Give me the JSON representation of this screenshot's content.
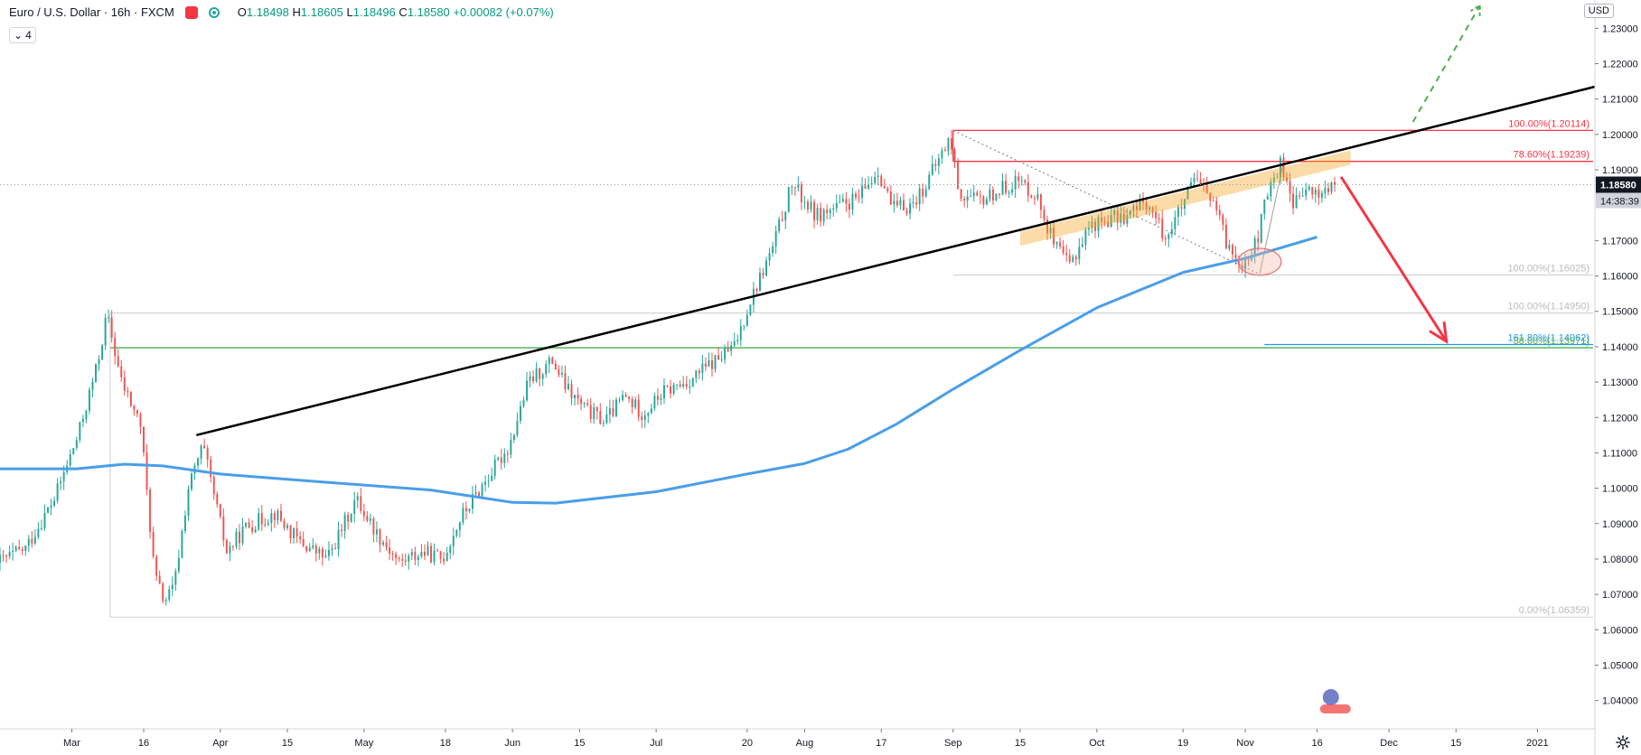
{
  "header": {
    "symbol_title": "Euro / U.S. Dollar · 16h · FXCM",
    "ohlc": {
      "o_label": "O",
      "o": "1.18498",
      "h_label": "H",
      "h": "1.18605",
      "l_label": "L",
      "l": "1.18496",
      "c_label": "C",
      "c": "1.18580",
      "change": "+0.00082 (+0.07%)"
    },
    "collapse_count": "4",
    "currency": "USD"
  },
  "colors": {
    "up": "#26a69a",
    "down": "#ef5350",
    "ma": "#4a9ee8",
    "trendline": "#000000",
    "fib_red": "#f23645",
    "fib_green": "#4caf50",
    "fib_blue": "#2196f3",
    "fib_gray": "#9e9e9e",
    "projection_green": "#4caf50"
  },
  "chart_data": {
    "type": "candlestick",
    "title": "Euro / U.S. Dollar · 16h · FXCM",
    "ylim": [
      1.032,
      1.238
    ],
    "y_ticks": [
      "1.23000",
      "1.22000",
      "1.21000",
      "1.20000",
      "1.19000",
      "1.17000",
      "1.16000",
      "1.15000",
      "1.14000",
      "1.13000",
      "1.12000",
      "1.11000",
      "1.10000",
      "1.09000",
      "1.08000",
      "1.07000",
      "1.06000",
      "1.05000",
      "1.04000"
    ],
    "y_tick_values": [
      1.23,
      1.22,
      1.21,
      1.2,
      1.19,
      1.17,
      1.16,
      1.15,
      1.14,
      1.13,
      1.12,
      1.11,
      1.1,
      1.09,
      1.08,
      1.07,
      1.06,
      1.05,
      1.04
    ],
    "x_ticks": [
      "Mar",
      "16",
      "Apr",
      "15",
      "May",
      "18",
      "Jun",
      "15",
      "Jul",
      "20",
      "Aug",
      "17",
      "Sep",
      "15",
      "Oct",
      "19",
      "Nov",
      "16",
      "Dec",
      "15",
      "2021"
    ],
    "x_tick_dates": [
      "2020-03-01",
      "2020-03-16",
      "2020-04-01",
      "2020-04-15",
      "2020-05-01",
      "2020-05-18",
      "2020-06-01",
      "2020-06-15",
      "2020-07-01",
      "2020-07-20",
      "2020-08-01",
      "2020-08-17",
      "2020-09-01",
      "2020-09-15",
      "2020-10-01",
      "2020-10-19",
      "2020-11-01",
      "2020-11-16",
      "2020-12-01",
      "2020-12-15",
      "2021-01-01"
    ],
    "x_range": [
      "2020-02-15",
      "2021-01-13"
    ],
    "price_path": [
      [
        "2020-02-15",
        1.079
      ],
      [
        "2020-02-21",
        1.083
      ],
      [
        "2020-02-27",
        1.097
      ],
      [
        "2020-03-03",
        1.115
      ],
      [
        "2020-03-07",
        1.135
      ],
      [
        "2020-03-09",
        1.149
      ],
      [
        "2020-03-12",
        1.13
      ],
      [
        "2020-03-16",
        1.118
      ],
      [
        "2020-03-19",
        1.075
      ],
      [
        "2020-03-21",
        1.068
      ],
      [
        "2020-03-23",
        1.072
      ],
      [
        "2020-03-26",
        1.1
      ],
      [
        "2020-03-29",
        1.112
      ],
      [
        "2020-04-03",
        1.082
      ],
      [
        "2020-04-07",
        1.089
      ],
      [
        "2020-04-13",
        1.093
      ],
      [
        "2020-04-18",
        1.085
      ],
      [
        "2020-04-24",
        1.08
      ],
      [
        "2020-04-30",
        1.097
      ],
      [
        "2020-05-04",
        1.088
      ],
      [
        "2020-05-09",
        1.079
      ],
      [
        "2020-05-14",
        1.082
      ],
      [
        "2020-05-18",
        1.08
      ],
      [
        "2020-05-22",
        1.092
      ],
      [
        "2020-05-28",
        1.104
      ],
      [
        "2020-06-01",
        1.112
      ],
      [
        "2020-06-05",
        1.13
      ],
      [
        "2020-06-10",
        1.136
      ],
      [
        "2020-06-13",
        1.128
      ],
      [
        "2020-06-17",
        1.122
      ],
      [
        "2020-06-21",
        1.119
      ],
      [
        "2020-06-25",
        1.126
      ],
      [
        "2020-06-29",
        1.121
      ],
      [
        "2020-07-03",
        1.127
      ],
      [
        "2020-07-08",
        1.13
      ],
      [
        "2020-07-13",
        1.135
      ],
      [
        "2020-07-18",
        1.14
      ],
      [
        "2020-07-21",
        1.152
      ],
      [
        "2020-07-26",
        1.168
      ],
      [
        "2020-07-30",
        1.186
      ],
      [
        "2020-08-04",
        1.177
      ],
      [
        "2020-08-08",
        1.179
      ],
      [
        "2020-08-13",
        1.182
      ],
      [
        "2020-08-17",
        1.19
      ],
      [
        "2020-08-20",
        1.179
      ],
      [
        "2020-08-24",
        1.18
      ],
      [
        "2020-08-27",
        1.186
      ],
      [
        "2020-09-01",
        1.199
      ],
      [
        "2020-09-03",
        1.183
      ],
      [
        "2020-09-07",
        1.181
      ],
      [
        "2020-09-11",
        1.184
      ],
      [
        "2020-09-15",
        1.187
      ],
      [
        "2020-09-19",
        1.183
      ],
      [
        "2020-09-23",
        1.168
      ],
      [
        "2020-09-26",
        1.163
      ],
      [
        "2020-09-30",
        1.174
      ],
      [
        "2020-10-04",
        1.176
      ],
      [
        "2020-10-08",
        1.177
      ],
      [
        "2020-10-12",
        1.181
      ],
      [
        "2020-10-16",
        1.171
      ],
      [
        "2020-10-20",
        1.181
      ],
      [
        "2020-10-22",
        1.187
      ],
      [
        "2020-10-26",
        1.181
      ],
      [
        "2020-10-29",
        1.168
      ],
      [
        "2020-11-01",
        1.164
      ],
      [
        "2020-11-04",
        1.169
      ],
      [
        "2020-11-06",
        1.182
      ],
      [
        "2020-11-09",
        1.192
      ],
      [
        "2020-11-12",
        1.18
      ],
      [
        "2020-11-14",
        1.184
      ],
      [
        "2020-11-17",
        1.183
      ],
      [
        "2020-11-20",
        1.1858
      ]
    ],
    "ma_path": [
      [
        "2020-02-15",
        1.1055
      ],
      [
        "2020-03-02",
        1.1055
      ],
      [
        "2020-03-12",
        1.1068
      ],
      [
        "2020-03-20",
        1.1063
      ],
      [
        "2020-04-01",
        1.104
      ],
      [
        "2020-04-20",
        1.102
      ],
      [
        "2020-05-15",
        1.0995
      ],
      [
        "2020-06-01",
        1.096
      ],
      [
        "2020-06-10",
        1.0958
      ],
      [
        "2020-07-01",
        1.099
      ],
      [
        "2020-07-20",
        1.104
      ],
      [
        "2020-08-01",
        1.107
      ],
      [
        "2020-08-10",
        1.111
      ],
      [
        "2020-08-20",
        1.118
      ],
      [
        "2020-09-01",
        1.128
      ],
      [
        "2020-09-15",
        1.139
      ],
      [
        "2020-10-01",
        1.151
      ],
      [
        "2020-10-19",
        1.161
      ],
      [
        "2020-11-01",
        1.165
      ],
      [
        "2020-11-16",
        1.171
      ]
    ],
    "trendline": [
      [
        "2020-03-27",
        1.115
      ],
      [
        "2021-01-13",
        1.2135
      ]
    ],
    "channel": [
      [
        "2020-09-15",
        1.1725
      ],
      [
        "2020-11-23",
        1.1955
      ],
      [
        "2020-11-23",
        1.1915
      ],
      [
        "2020-09-15",
        1.1685
      ]
    ],
    "fib_levels": [
      {
        "label": "100.00%(1.20114)",
        "value": 1.20114,
        "color": "fib_red",
        "from": "2020-09-01"
      },
      {
        "label": "78.60%(1.19239)",
        "value": 1.19239,
        "color": "fib_red",
        "from": "2020-09-01"
      },
      {
        "label": "100.00%(1.16025)",
        "value": 1.16025,
        "color": "fib_gray",
        "from": "2020-09-01"
      },
      {
        "label": "100.00%(1.14950)",
        "value": 1.1495,
        "color": "fib_gray",
        "from": "2020-03-09"
      },
      {
        "label": "161.80%(1.14062)",
        "value": 1.14062,
        "color": "fib_blue",
        "from": "2020-11-05"
      },
      {
        "label": "88.60%(1.13971)",
        "value": 1.13971,
        "color": "fib_green",
        "from": "2020-03-09"
      },
      {
        "label": "0.00%(1.06359)",
        "value": 1.06359,
        "color": "fib_gray",
        "from": "2020-03-09"
      }
    ],
    "price_label": {
      "value": "1.18580",
      "countdown": "14:38:39",
      "y": 1.1858
    },
    "bearish_arrow": [
      [
        "2020-11-21",
        1.188
      ],
      [
        "2020-12-13",
        1.1415
      ]
    ],
    "bullish_projection": [
      [
        "2020-12-06",
        1.2035
      ],
      [
        "2020-12-20",
        1.2365
      ]
    ],
    "ellipse": {
      "center": [
        "2020-11-04",
        1.164
      ],
      "rx_days": 4.5,
      "ry": 0.0038
    }
  }
}
